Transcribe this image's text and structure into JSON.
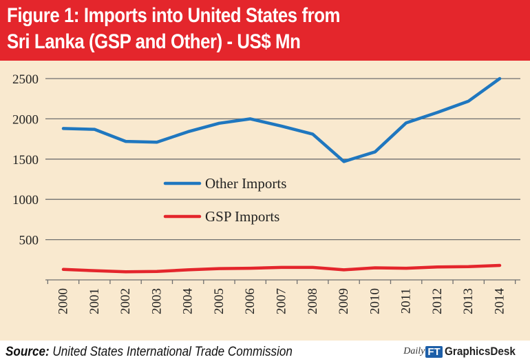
{
  "title_line1": "Figure 1: Imports into United States from",
  "title_line2": "Sri Lanka (GSP and Other) - US$ Mn",
  "source_label": "Source:",
  "source_text": "United States International Trade Commission",
  "brand": {
    "daily": "Daily",
    "ft": "FT",
    "desk": "GraphicsDesk"
  },
  "colors": {
    "banner": "#e4262c",
    "plot_bg": "#f9e9cf",
    "other": "#1f77bf",
    "gsp": "#e4262c",
    "grid": "#6f6f6f"
  },
  "chart_data": {
    "type": "line",
    "title": "Figure 1: Imports into United States from Sri Lanka (GSP and Other) - US$ Mn",
    "categories": [
      "2000",
      "2001",
      "2002",
      "2003",
      "2004",
      "2005",
      "2006",
      "2007",
      "2008",
      "2009",
      "2010",
      "2011",
      "2012",
      "2013",
      "2014"
    ],
    "series": [
      {
        "name": "Other Imports",
        "color": "#1f77bf",
        "values": [
          1880,
          1870,
          1720,
          1710,
          1840,
          1945,
          2000,
          1910,
          1810,
          1470,
          1590,
          1950,
          2080,
          2220,
          2500
        ]
      },
      {
        "name": "GSP Imports",
        "color": "#e4262c",
        "values": [
          130,
          115,
          100,
          105,
          125,
          140,
          145,
          155,
          155,
          125,
          150,
          145,
          160,
          165,
          180
        ]
      }
    ],
    "y_ticks": [
      500,
      1000,
      1500,
      2000,
      2500
    ],
    "ylim": [
      0,
      2500
    ],
    "grid": true,
    "legend": "center-left"
  }
}
